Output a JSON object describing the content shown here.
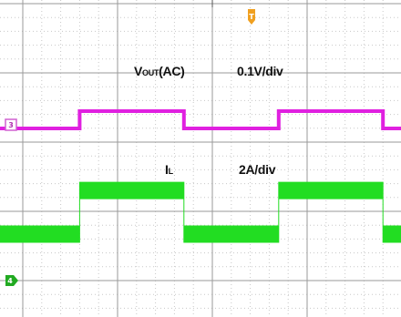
{
  "chart_data": {
    "type": "line",
    "grid": true,
    "ch3": {
      "marker": "3",
      "label_main": "V",
      "label_sub": "OUT",
      "label_tail": "(AC)",
      "scale": "0.1V/div",
      "color": "#e020e0",
      "x": [
        0,
        0.6,
        0.6,
        1.7,
        1.7,
        2.7,
        2.7,
        3.8,
        3.8,
        4.3
      ],
      "y": [
        0,
        0,
        0.25,
        0.25,
        0,
        0,
        0.25,
        0.25,
        0,
        0
      ]
    },
    "ch4": {
      "marker": "4",
      "label_main": "I",
      "label_sub": "L",
      "scale": "2A/div",
      "color": "#22dd22",
      "x": [
        0,
        0.6,
        0.6,
        1.7,
        1.7,
        2.7,
        2.7,
        3.8,
        3.8,
        4.3
      ],
      "y": [
        1.4,
        1.4,
        2.3,
        2.3,
        1.4,
        1.4,
        2.3,
        2.3,
        1.4,
        1.4
      ]
    },
    "trigger_marker": "T"
  }
}
